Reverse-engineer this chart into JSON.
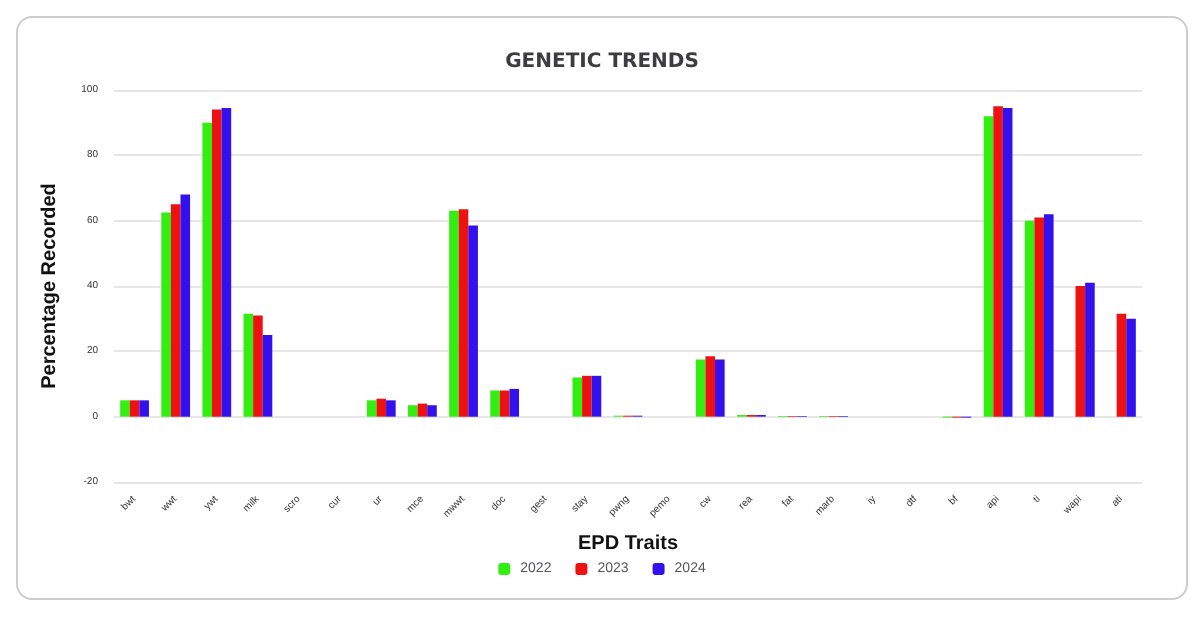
{
  "chart_data": {
    "type": "bar",
    "title": "GENETIC TRENDS",
    "xlabel": "EPD Traits",
    "ylabel": "Percentage Recorded",
    "categories": [
      "bwt",
      "wwt",
      "ywt",
      "milk",
      "scro",
      "cur",
      "ur",
      "mce",
      "mwwt",
      "doc",
      "gest",
      "stay",
      "pwng",
      "pemo",
      "cw",
      "rea",
      "fat",
      "marb",
      "iy",
      "dtf",
      "bf",
      "api",
      "ti",
      "wapi",
      "ati"
    ],
    "series": [
      {
        "name": "2022",
        "color": "#33ee11",
        "values": [
          5,
          62.5,
          90,
          31.5,
          null,
          null,
          5,
          3.5,
          63,
          8,
          null,
          12,
          0.3,
          null,
          17.5,
          0.5,
          0.2,
          0.2,
          null,
          null,
          -0.3,
          92,
          60,
          null,
          null
        ]
      },
      {
        "name": "2023",
        "color": "#ee1111",
        "values": [
          5,
          65,
          94,
          31,
          null,
          null,
          5.5,
          4,
          63.5,
          8,
          null,
          12.5,
          0.3,
          null,
          18.5,
          0.5,
          0.2,
          0.2,
          null,
          null,
          -0.3,
          95,
          61,
          40,
          31.5
        ]
      },
      {
        "name": "2024",
        "color": "#3311ee",
        "values": [
          5,
          68,
          94.5,
          25,
          null,
          null,
          5,
          3.5,
          58.5,
          8.5,
          null,
          12.5,
          0.3,
          null,
          17.5,
          0.5,
          0.2,
          0.2,
          null,
          null,
          -0.3,
          94.5,
          62,
          41,
          30
        ]
      }
    ],
    "ylim": [
      -20,
      100
    ],
    "yticks": [
      -20,
      0,
      20,
      40,
      60,
      80,
      100
    ],
    "grid": "y",
    "legend": "bottom"
  }
}
